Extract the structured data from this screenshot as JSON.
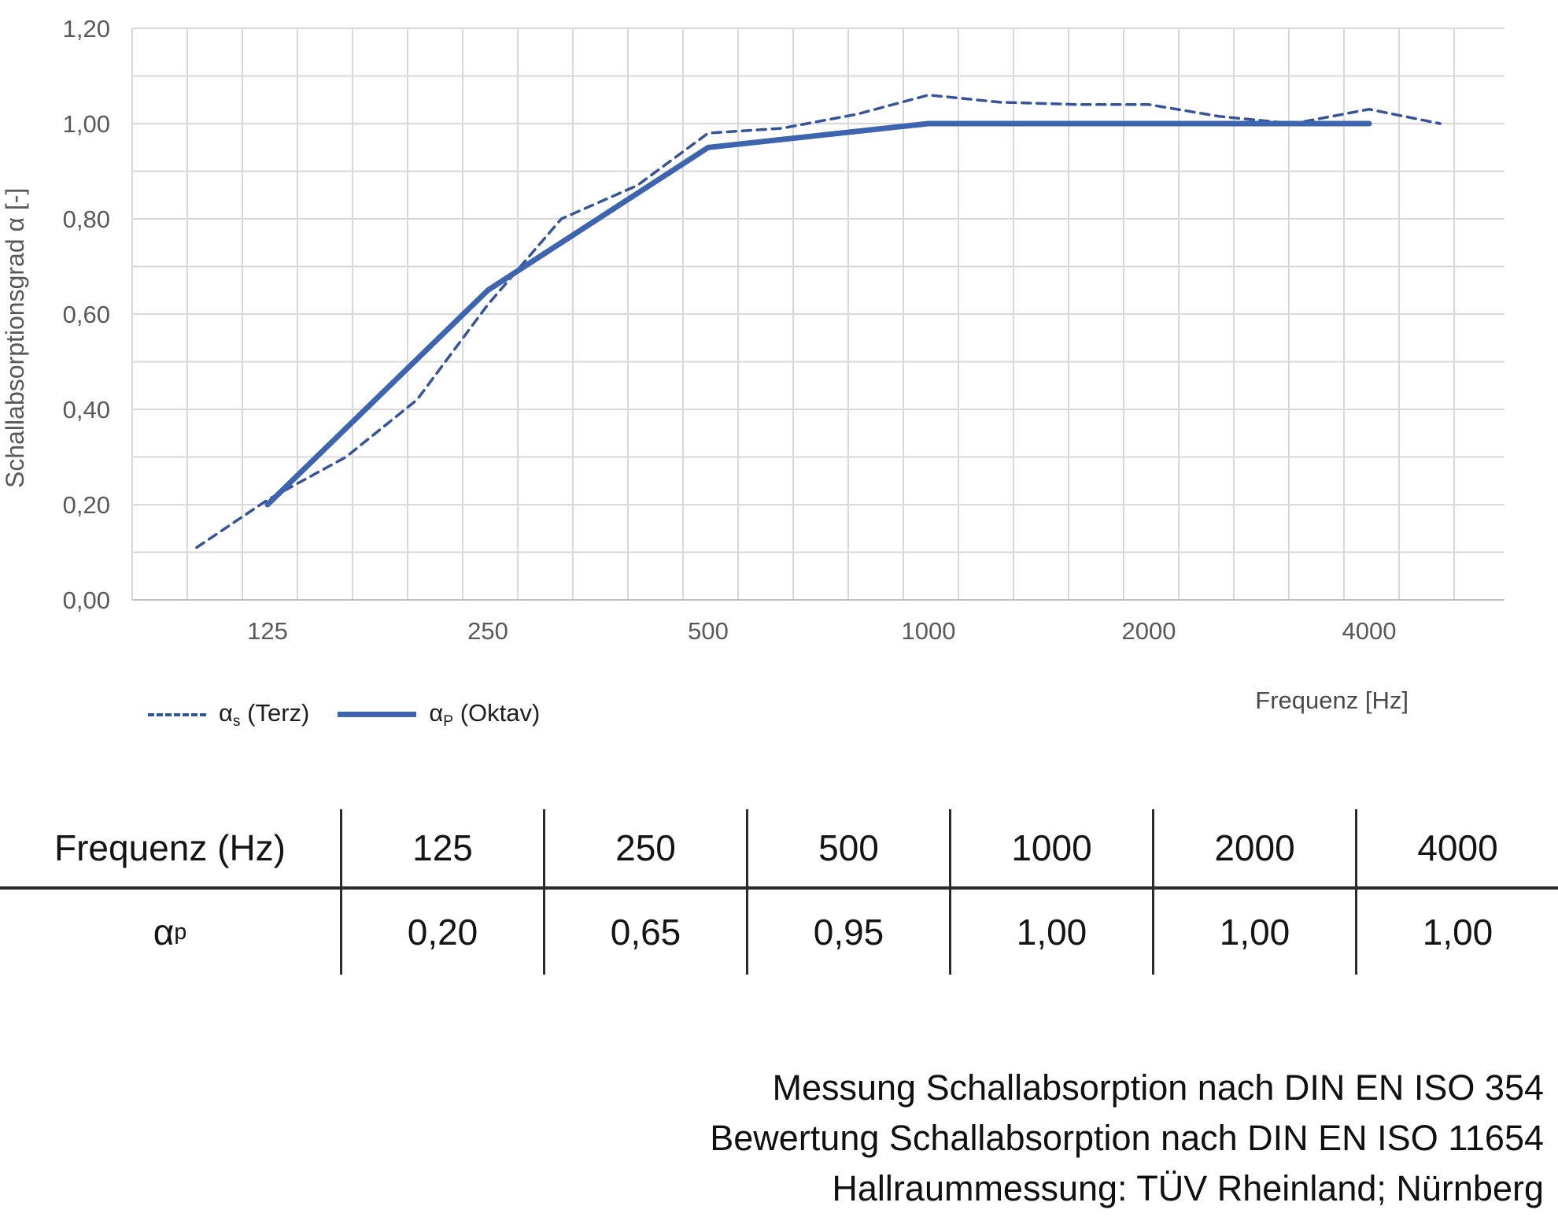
{
  "colors": {
    "series_solid": "#3D64AE",
    "series_dashed": "#34549B",
    "gridline": "#D9D9D9",
    "axis_line": "#BFBFBF",
    "tick_text": "#595959",
    "table_line": "#2b2b2b"
  },
  "chart": {
    "y_axis": {
      "title": "Schallabsorptionsgrad α [-]",
      "ticks": [
        {
          "v": 0.0,
          "label": "0,00"
        },
        {
          "v": 0.2,
          "label": "0,20"
        },
        {
          "v": 0.4,
          "label": "0,40"
        },
        {
          "v": 0.6,
          "label": "0,60"
        },
        {
          "v": 0.8,
          "label": "0,80"
        },
        {
          "v": 1.0,
          "label": "1,00"
        },
        {
          "v": 1.2,
          "label": "1,20"
        }
      ]
    },
    "x_axis": {
      "label": "Frequenz [Hz]",
      "ticks": [
        {
          "f": 125,
          "label": "125"
        },
        {
          "f": 250,
          "label": "250"
        },
        {
          "f": 500,
          "label": "500"
        },
        {
          "f": 1000,
          "label": "1000"
        },
        {
          "f": 2000,
          "label": "2000"
        },
        {
          "f": 4000,
          "label": "4000"
        }
      ]
    },
    "legend": [
      {
        "pre": "α",
        "sub": "s",
        "post": " (Terz)",
        "style": "dashed"
      },
      {
        "pre": "α",
        "sub": "P",
        "post": " (Oktav)",
        "style": "solid"
      }
    ]
  },
  "chart_data": {
    "type": "line",
    "title": "",
    "xlabel": "Frequenz [Hz]",
    "ylabel": "Schallabsorptionsgrad α [-]",
    "x_scale": "log2",
    "ylim": [
      0,
      1.2
    ],
    "y_major_step": 0.2,
    "y_minor_gridline_step": 0.1,
    "x_ticks": [
      125,
      250,
      500,
      1000,
      2000,
      4000
    ],
    "grid": true,
    "legend_position": "bottom-left",
    "series": [
      {
        "name": "αs (Terz)",
        "style": "dashed",
        "x": [
          100,
          125,
          160,
          200,
          250,
          315,
          400,
          500,
          630,
          800,
          1000,
          1250,
          1600,
          2000,
          2500,
          3150,
          4000,
          5000
        ],
        "values": [
          0.11,
          0.21,
          0.3,
          0.42,
          0.62,
          0.8,
          0.87,
          0.98,
          0.99,
          1.02,
          1.06,
          1.045,
          1.04,
          1.04,
          1.015,
          1.0,
          1.03,
          1.0
        ]
      },
      {
        "name": "αP (Oktav)",
        "style": "solid",
        "x": [
          125,
          250,
          500,
          1000,
          2000,
          4000
        ],
        "values": [
          0.2,
          0.65,
          0.95,
          1.0,
          1.0,
          1.0
        ]
      }
    ]
  },
  "table": {
    "header_label": "Frequenz (Hz)",
    "header_cols": [
      "125",
      "250",
      "500",
      "1000",
      "2000",
      "4000"
    ],
    "row_label_pre": "α",
    "row_label_sub": "p",
    "row_values": [
      "0,20",
      "0,65",
      "0,95",
      "1,00",
      "1,00",
      "1,00"
    ]
  },
  "footer": {
    "lines": [
      "Messung Schallabsorption nach DIN EN ISO 354",
      "Bewertung Schallabsorption nach DIN EN ISO 11654",
      "Hallraummessung: TÜV Rheinland; Nürnberg"
    ]
  }
}
